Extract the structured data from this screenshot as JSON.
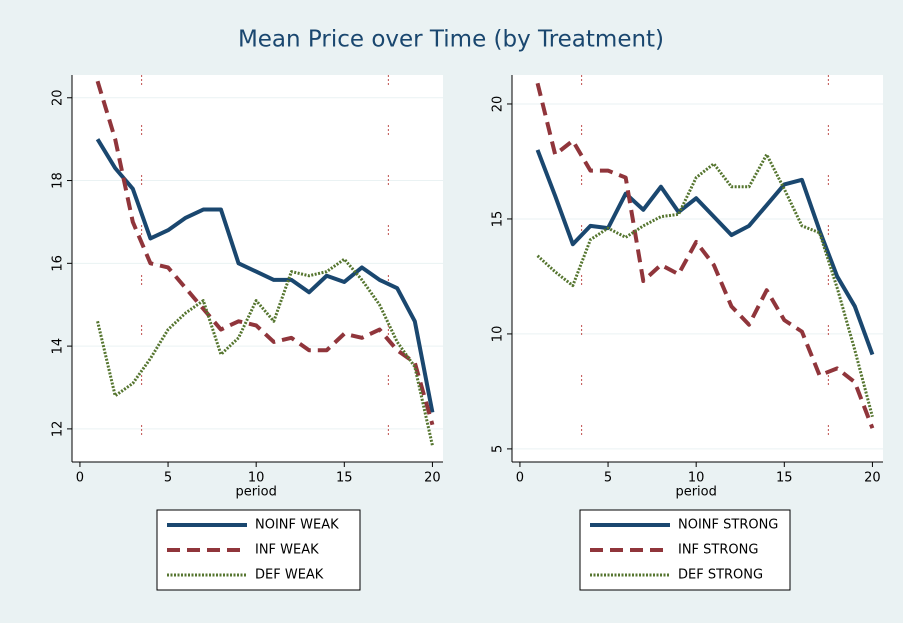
{
  "title": "Mean Price over Time (by Treatment)",
  "chart_data": [
    {
      "type": "line",
      "xlabel": "period",
      "x": [
        1,
        2,
        3,
        4,
        5,
        6,
        7,
        8,
        9,
        10,
        11,
        12,
        13,
        14,
        15,
        16,
        17,
        18,
        19,
        20
      ],
      "xlim": [
        -0.45,
        20.6
      ],
      "xticks": [
        0,
        5,
        10,
        15,
        20
      ],
      "ylim": [
        11.2,
        20.55
      ],
      "yticks": [
        12,
        14,
        16,
        18,
        20
      ],
      "grid": true,
      "vlines": [
        3.5,
        17.5
      ],
      "vline_color": "#c0504d",
      "series": [
        {
          "name": "NOINF WEAK",
          "color": "#1a476f",
          "style": "solid",
          "values": [
            19.0,
            18.3,
            17.8,
            16.6,
            16.8,
            17.1,
            17.3,
            17.3,
            16.0,
            15.8,
            15.6,
            15.6,
            15.3,
            15.7,
            15.55,
            15.9,
            15.6,
            15.4,
            14.6,
            12.4
          ]
        },
        {
          "name": "INF WEAK",
          "color": "#90353b",
          "style": "dash",
          "values": [
            20.4,
            19.0,
            17.0,
            16.0,
            15.9,
            15.4,
            14.9,
            14.4,
            14.6,
            14.5,
            14.1,
            14.2,
            13.9,
            13.9,
            14.3,
            14.2,
            14.4,
            13.9,
            13.6,
            12.1
          ]
        },
        {
          "name": "DEF WEAK",
          "color": "#55752f",
          "style": "dot",
          "values": [
            14.6,
            12.8,
            13.1,
            13.7,
            14.4,
            14.8,
            15.1,
            13.8,
            14.2,
            15.1,
            14.6,
            15.8,
            15.7,
            15.8,
            16.1,
            15.6,
            15.0,
            14.1,
            13.5,
            11.6
          ]
        }
      ]
    },
    {
      "type": "line",
      "xlabel": "period",
      "x": [
        1,
        2,
        3,
        4,
        5,
        6,
        7,
        8,
        9,
        10,
        11,
        12,
        13,
        14,
        15,
        16,
        17,
        18,
        19,
        20
      ],
      "xlim": [
        -0.45,
        20.6
      ],
      "xticks": [
        0,
        5,
        10,
        15,
        20
      ],
      "ylim": [
        4.43,
        21.26
      ],
      "yticks": [
        5,
        10,
        15,
        20
      ],
      "grid": true,
      "vlines": [
        3.5,
        17.5
      ],
      "vline_color": "#c0504d",
      "series": [
        {
          "name": "NOINF STRONG",
          "color": "#1a476f",
          "style": "solid",
          "values": [
            18.0,
            16.0,
            13.9,
            14.7,
            14.6,
            16.1,
            15.4,
            16.4,
            15.3,
            15.9,
            15.1,
            14.3,
            14.7,
            15.6,
            16.5,
            16.7,
            14.5,
            12.5,
            11.2,
            9.1
          ]
        },
        {
          "name": "INF STRONG",
          "color": "#90353b",
          "style": "dash",
          "values": [
            20.9,
            17.8,
            18.4,
            17.1,
            17.1,
            16.8,
            12.3,
            13.0,
            12.6,
            14.0,
            13.0,
            11.2,
            10.4,
            11.9,
            10.6,
            10.1,
            8.2,
            8.5,
            7.9,
            5.9
          ]
        },
        {
          "name": "DEF STRONG",
          "color": "#55752f",
          "style": "dot",
          "values": [
            13.4,
            12.7,
            12.1,
            14.1,
            14.6,
            14.2,
            14.7,
            15.1,
            15.2,
            16.8,
            17.4,
            16.4,
            16.4,
            17.8,
            16.3,
            14.7,
            14.4,
            12.0,
            9.3,
            6.4
          ]
        }
      ]
    }
  ]
}
